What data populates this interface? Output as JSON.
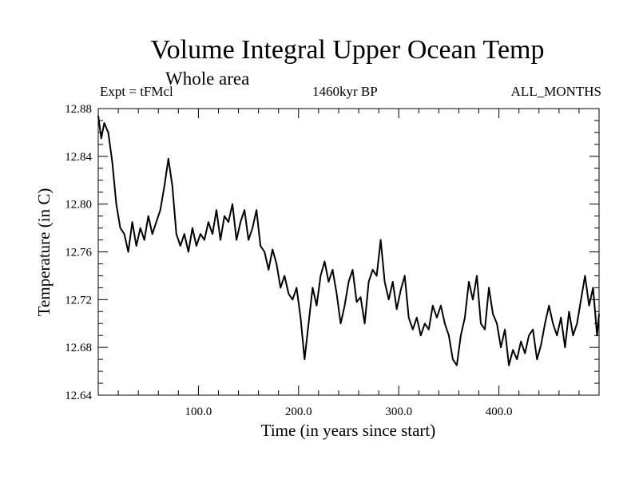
{
  "title": "Volume Integral Upper Ocean Temp",
  "subtitle": "Whole area",
  "annotations": {
    "left": "Expt = tFMcl",
    "center": "1460kyr BP",
    "right": "ALL_MONTHS"
  },
  "chart_data": {
    "type": "line",
    "title": "Volume Integral Upper Ocean Temp",
    "xlabel": "Time (in years since start)",
    "ylabel": "Temperature (in C)",
    "xlim": [
      0,
      500
    ],
    "ylim": [
      12.64,
      12.88
    ],
    "xticks": [
      100,
      200,
      300,
      400
    ],
    "xtick_labels": [
      "100.0",
      "200.0",
      "300.0",
      "400.0"
    ],
    "yticks": [
      12.64,
      12.68,
      12.72,
      12.76,
      12.8,
      12.84,
      12.88
    ],
    "ytick_labels": [
      "12.64",
      "12.68",
      "12.72",
      "12.76",
      "12.80",
      "12.84",
      "12.88"
    ],
    "grid": false,
    "series": [
      {
        "name": "Volume integral upper ocean temperature",
        "x": [
          0,
          3,
          6,
          10,
          14,
          18,
          22,
          26,
          30,
          34,
          38,
          42,
          46,
          50,
          54,
          58,
          62,
          66,
          70,
          74,
          78,
          82,
          86,
          90,
          94,
          98,
          102,
          106,
          110,
          114,
          118,
          122,
          126,
          130,
          134,
          138,
          142,
          146,
          150,
          154,
          158,
          162,
          166,
          170,
          174,
          178,
          182,
          186,
          190,
          194,
          198,
          202,
          206,
          210,
          214,
          218,
          222,
          226,
          230,
          234,
          238,
          242,
          246,
          250,
          254,
          258,
          262,
          266,
          270,
          274,
          278,
          282,
          286,
          290,
          294,
          298,
          302,
          306,
          310,
          314,
          318,
          322,
          326,
          330,
          334,
          338,
          342,
          346,
          350,
          354,
          358,
          362,
          366,
          370,
          374,
          378,
          382,
          386,
          390,
          394,
          398,
          402,
          406,
          410,
          414,
          418,
          422,
          426,
          430,
          434,
          438,
          442,
          446,
          450,
          454,
          458,
          462,
          466,
          470,
          474,
          478,
          482,
          486,
          490,
          494,
          498,
          500
        ],
        "values": [
          12.874,
          12.855,
          12.868,
          12.86,
          12.835,
          12.8,
          12.78,
          12.775,
          12.76,
          12.785,
          12.765,
          12.78,
          12.77,
          12.79,
          12.775,
          12.785,
          12.795,
          12.815,
          12.838,
          12.815,
          12.775,
          12.765,
          12.775,
          12.76,
          12.78,
          12.765,
          12.775,
          12.77,
          12.785,
          12.775,
          12.795,
          12.77,
          12.79,
          12.785,
          12.8,
          12.77,
          12.785,
          12.795,
          12.77,
          12.78,
          12.795,
          12.765,
          12.76,
          12.745,
          12.762,
          12.75,
          12.73,
          12.74,
          12.725,
          12.72,
          12.73,
          12.705,
          12.67,
          12.7,
          12.73,
          12.715,
          12.74,
          12.752,
          12.735,
          12.745,
          12.725,
          12.7,
          12.715,
          12.735,
          12.745,
          12.718,
          12.722,
          12.7,
          12.735,
          12.745,
          12.74,
          12.77,
          12.735,
          12.72,
          12.735,
          12.712,
          12.728,
          12.74,
          12.705,
          12.695,
          12.705,
          12.69,
          12.7,
          12.695,
          12.715,
          12.705,
          12.715,
          12.7,
          12.69,
          12.67,
          12.665,
          12.69,
          12.705,
          12.735,
          12.72,
          12.74,
          12.7,
          12.695,
          12.73,
          12.708,
          12.7,
          12.68,
          12.695,
          12.665,
          12.678,
          12.67,
          12.685,
          12.675,
          12.69,
          12.695,
          12.67,
          12.682,
          12.7,
          12.715,
          12.7,
          12.69,
          12.705,
          12.68,
          12.71,
          12.69,
          12.7,
          12.72,
          12.74,
          12.715,
          12.73,
          12.69,
          12.708
        ]
      }
    ]
  }
}
